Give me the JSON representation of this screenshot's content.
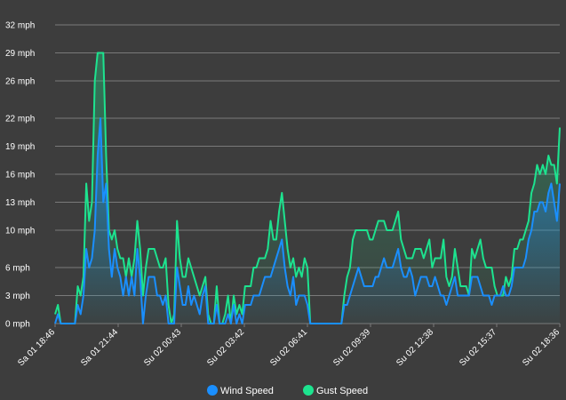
{
  "chart_data": {
    "type": "line",
    "title": "",
    "xlabel": "",
    "ylabel": "",
    "ylim": [
      0,
      32
    ],
    "y_ticks": [
      0,
      3,
      6,
      10,
      13,
      16,
      19,
      22,
      26,
      29,
      32
    ],
    "y_unit": "mph",
    "x_tick_labels": [
      "Sa 01 18:46",
      "Sa 01 21:44",
      "Su 02 00:43",
      "Su 02 03:42",
      "Su 02 06:41",
      "Su 02 09:39",
      "Su 02 12:38",
      "Su 02 15:37",
      "Su 02 18:36"
    ],
    "grid": true,
    "legend_position": "bottom-center",
    "background_color": "#3d3d3d",
    "grid_color": "#7a7a7a",
    "series": [
      {
        "name": "Wind Speed",
        "color": "#1a8fff",
        "values": [
          0,
          1,
          0,
          0,
          0,
          0,
          0,
          0,
          2,
          1,
          3,
          8,
          6,
          7,
          10,
          18,
          22,
          13,
          15,
          8,
          5,
          8,
          6,
          5,
          3,
          5,
          3,
          5,
          3,
          8,
          5,
          0,
          3,
          5,
          5,
          5,
          3,
          3,
          2,
          3,
          0,
          0,
          0,
          6,
          4,
          2,
          2,
          4,
          2,
          3,
          2,
          1,
          3,
          4,
          0,
          0,
          0,
          2,
          0,
          0,
          0,
          1,
          0,
          2,
          0,
          1,
          0,
          2,
          2,
          2,
          3,
          3,
          3,
          4,
          5,
          5,
          5,
          6,
          7,
          8,
          9,
          6,
          4,
          3,
          5,
          2,
          3,
          3,
          3,
          2,
          0,
          0,
          0,
          0,
          0,
          0,
          0,
          0,
          0,
          0,
          0,
          0,
          2,
          2,
          3,
          4,
          5,
          6,
          5,
          4,
          4,
          4,
          4,
          5,
          5,
          6,
          7,
          6,
          6,
          6,
          7,
          8,
          6,
          5,
          5,
          6,
          5,
          3,
          4,
          5,
          5,
          5,
          4,
          4,
          5,
          4,
          3,
          3,
          2,
          3,
          4,
          5,
          3,
          3,
          3,
          3,
          3,
          5,
          5,
          5,
          4,
          3,
          3,
          3,
          2,
          3,
          3,
          3,
          4,
          3,
          3,
          4,
          6,
          6,
          6,
          6,
          7,
          9,
          10,
          12,
          12,
          13,
          13,
          12,
          14,
          15,
          13,
          11,
          15
        ]
      },
      {
        "name": "Gust Speed",
        "color": "#1de38f",
        "values": [
          1,
          2,
          0,
          0,
          0,
          0,
          0,
          0,
          4,
          3,
          5,
          15,
          11,
          13,
          26,
          29,
          29,
          29,
          18,
          10,
          9,
          10,
          8,
          7,
          7,
          5,
          7,
          5,
          7,
          11,
          8,
          3,
          6,
          8,
          8,
          8,
          7,
          6,
          6,
          7,
          2,
          0,
          1,
          11,
          7,
          5,
          5,
          7,
          6,
          5,
          4,
          3,
          4,
          5,
          1,
          0,
          0,
          4,
          0,
          0,
          1,
          3,
          0,
          3,
          1,
          2,
          1,
          4,
          4,
          4,
          6,
          6,
          7,
          7,
          7,
          8,
          11,
          9,
          9,
          12,
          14,
          11,
          8,
          6,
          7,
          5,
          6,
          5,
          7,
          6,
          0,
          0,
          0,
          0,
          0,
          0,
          0,
          0,
          0,
          0,
          0,
          0,
          3,
          5,
          6,
          9,
          10,
          10,
          10,
          10,
          10,
          9,
          9,
          10,
          11,
          11,
          11,
          10,
          10,
          10,
          11,
          12,
          9,
          8,
          7,
          7,
          7,
          8,
          8,
          8,
          7,
          8,
          9,
          6,
          7,
          7,
          7,
          9,
          5,
          4,
          5,
          8,
          6,
          4,
          4,
          4,
          3,
          8,
          7,
          8,
          9,
          7,
          6,
          6,
          6,
          4,
          3,
          3,
          3,
          5,
          4,
          5,
          8,
          8,
          9,
          9,
          10,
          11,
          14,
          15,
          17,
          16,
          17,
          16,
          18,
          17,
          17,
          15,
          21
        ]
      }
    ]
  }
}
